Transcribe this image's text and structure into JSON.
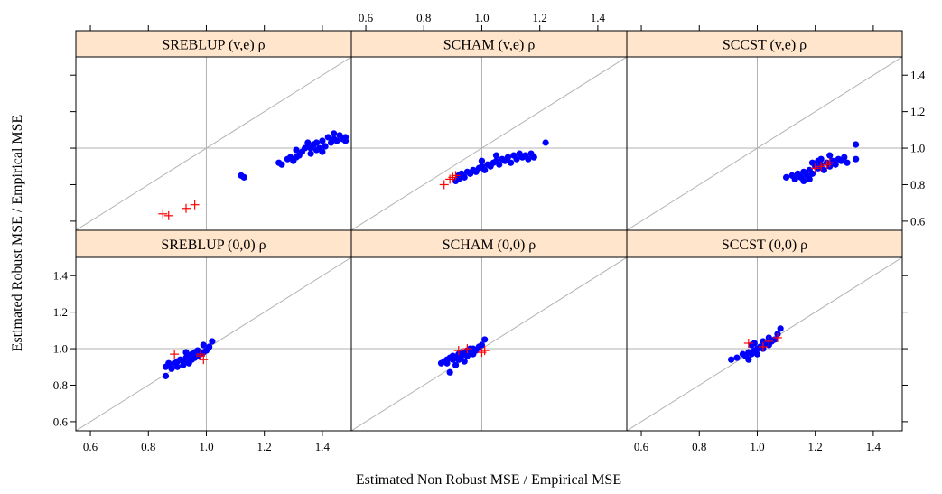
{
  "chart_data": {
    "type": "scatter",
    "xlabel": "Estimated Non Robust MSE / Empirical MSE",
    "ylabel": "Estimated Robust MSE / Empirical MSE",
    "xlim": [
      0.55,
      1.5
    ],
    "ylim": [
      0.55,
      1.5
    ],
    "x_ticks": [
      0.6,
      0.8,
      1.0,
      1.2,
      1.4
    ],
    "y_ticks": [
      0.6,
      0.8,
      1.0,
      1.2,
      1.4
    ],
    "x_tick_labels": [
      "0.6",
      "0.8",
      "1.0",
      "1.2",
      "1.4"
    ],
    "y_tick_labels": [
      "0.6",
      "0.8",
      "1.0",
      "1.2",
      "1.4"
    ],
    "reference_lines": {
      "diagonal": "y = x",
      "horizontal": 1.0,
      "vertical": 1.0
    },
    "colors": {
      "strip": "#ffe5cc",
      "points": "#0000ff",
      "crosses": "#ff0000",
      "reference": "#b3b3b3",
      "frame": "#000000"
    },
    "panels": [
      {
        "title": "SREBLUP (v,e) ρ",
        "series": [
          {
            "marker": "dot",
            "color": "#0000ff",
            "points": [
              [
                1.12,
                0.85
              ],
              [
                1.13,
                0.84
              ],
              [
                1.25,
                0.92
              ],
              [
                1.26,
                0.91
              ],
              [
                1.28,
                0.94
              ],
              [
                1.29,
                0.95
              ],
              [
                1.3,
                0.93
              ],
              [
                1.31,
                0.95
              ],
              [
                1.31,
                0.99
              ],
              [
                1.32,
                0.96
              ],
              [
                1.33,
                0.98
              ],
              [
                1.34,
                1.0
              ],
              [
                1.35,
                1.01
              ],
              [
                1.35,
                1.03
              ],
              [
                1.36,
                0.97
              ],
              [
                1.37,
                1.02
              ],
              [
                1.38,
                0.99
              ],
              [
                1.38,
                1.03
              ],
              [
                1.39,
                1.0
              ],
              [
                1.4,
                1.04
              ],
              [
                1.41,
                1.01
              ],
              [
                1.42,
                1.06
              ],
              [
                1.43,
                1.03
              ],
              [
                1.44,
                1.05
              ],
              [
                1.44,
                1.08
              ],
              [
                1.45,
                1.04
              ],
              [
                1.46,
                1.07
              ],
              [
                1.47,
                1.05
              ],
              [
                1.48,
                1.06
              ],
              [
                1.48,
                1.04
              ],
              [
                1.36,
                1.0
              ],
              [
                1.4,
                0.98
              ]
            ]
          },
          {
            "marker": "cross",
            "color": "#ff0000",
            "points": [
              [
                0.85,
                0.64
              ],
              [
                0.87,
                0.63
              ],
              [
                0.93,
                0.67
              ],
              [
                0.96,
                0.69
              ]
            ]
          }
        ]
      },
      {
        "title": "SCHAM (v,e) ρ",
        "series": [
          {
            "marker": "dot",
            "color": "#0000ff",
            "points": [
              [
                0.91,
                0.82
              ],
              [
                0.92,
                0.83
              ],
              [
                0.92,
                0.85
              ],
              [
                0.93,
                0.86
              ],
              [
                0.94,
                0.84
              ],
              [
                0.95,
                0.87
              ],
              [
                0.96,
                0.86
              ],
              [
                0.97,
                0.88
              ],
              [
                0.98,
                0.87
              ],
              [
                0.99,
                0.89
              ],
              [
                1.0,
                0.9
              ],
              [
                1.01,
                0.88
              ],
              [
                1.02,
                0.91
              ],
              [
                1.03,
                0.9
              ],
              [
                1.04,
                0.92
              ],
              [
                1.05,
                0.93
              ],
              [
                1.06,
                0.91
              ],
              [
                1.07,
                0.94
              ],
              [
                1.08,
                0.93
              ],
              [
                1.09,
                0.95
              ],
              [
                1.1,
                0.92
              ],
              [
                1.11,
                0.96
              ],
              [
                1.12,
                0.94
              ],
              [
                1.13,
                0.97
              ],
              [
                1.14,
                0.95
              ],
              [
                1.15,
                0.96
              ],
              [
                1.16,
                0.94
              ],
              [
                1.17,
                0.97
              ],
              [
                1.18,
                0.95
              ],
              [
                1.22,
                1.03
              ],
              [
                1.0,
                0.93
              ],
              [
                1.05,
                0.96
              ]
            ]
          },
          {
            "marker": "cross",
            "color": "#ff0000",
            "points": [
              [
                0.87,
                0.8
              ],
              [
                0.89,
                0.83
              ],
              [
                0.9,
                0.84
              ],
              [
                0.91,
                0.85
              ]
            ]
          }
        ]
      },
      {
        "title": "SCCST (v,e) ρ",
        "series": [
          {
            "marker": "dot",
            "color": "#0000ff",
            "points": [
              [
                1.1,
                0.84
              ],
              [
                1.12,
                0.85
              ],
              [
                1.13,
                0.83
              ],
              [
                1.14,
                0.86
              ],
              [
                1.15,
                0.84
              ],
              [
                1.16,
                0.87
              ],
              [
                1.17,
                0.85
              ],
              [
                1.18,
                0.83
              ],
              [
                1.18,
                0.88
              ],
              [
                1.19,
                0.86
              ],
              [
                1.2,
                0.9
              ],
              [
                1.21,
                0.89
              ],
              [
                1.22,
                0.91
              ],
              [
                1.23,
                0.88
              ],
              [
                1.24,
                0.92
              ],
              [
                1.25,
                0.9
              ],
              [
                1.26,
                0.93
              ],
              [
                1.27,
                0.91
              ],
              [
                1.28,
                0.94
              ],
              [
                1.29,
                0.93
              ],
              [
                1.3,
                0.95
              ],
              [
                1.31,
                0.92
              ],
              [
                1.25,
                0.96
              ],
              [
                1.22,
                0.94
              ],
              [
                1.19,
                0.92
              ],
              [
                1.34,
                1.02
              ],
              [
                1.34,
                0.94
              ],
              [
                1.16,
                0.82
              ],
              [
                1.21,
                0.93
              ]
            ]
          },
          {
            "marker": "cross",
            "color": "#ff0000",
            "points": [
              [
                1.2,
                0.89
              ],
              [
                1.22,
                0.9
              ],
              [
                1.24,
                0.91
              ],
              [
                1.25,
                0.92
              ]
            ]
          }
        ]
      },
      {
        "title": "SREBLUP (0,0) ρ",
        "series": [
          {
            "marker": "dot",
            "color": "#0000ff",
            "points": [
              [
                0.86,
                0.85
              ],
              [
                0.86,
                0.9
              ],
              [
                0.87,
                0.91
              ],
              [
                0.87,
                0.92
              ],
              [
                0.88,
                0.89
              ],
              [
                0.89,
                0.92
              ],
              [
                0.9,
                0.93
              ],
              [
                0.9,
                0.9
              ],
              [
                0.91,
                0.94
              ],
              [
                0.92,
                0.93
              ],
              [
                0.92,
                0.91
              ],
              [
                0.93,
                0.95
              ],
              [
                0.94,
                0.96
              ],
              [
                0.94,
                0.92
              ],
              [
                0.95,
                0.97
              ],
              [
                0.95,
                0.94
              ],
              [
                0.96,
                0.98
              ],
              [
                0.97,
                0.96
              ],
              [
                0.97,
                0.99
              ],
              [
                0.98,
                0.97
              ],
              [
                0.99,
                1.02
              ],
              [
                1.0,
                0.99
              ],
              [
                1.01,
                1.01
              ],
              [
                1.02,
                1.04
              ],
              [
                0.93,
                0.98
              ],
              [
                0.96,
                0.95
              ],
              [
                0.99,
                0.98
              ]
            ]
          },
          {
            "marker": "cross",
            "color": "#ff0000",
            "points": [
              [
                0.89,
                0.97
              ],
              [
                0.98,
                0.97
              ],
              [
                0.98,
                0.96
              ],
              [
                0.99,
                0.94
              ]
            ]
          }
        ]
      },
      {
        "title": "SCHAM (0,0) ρ",
        "series": [
          {
            "marker": "dot",
            "color": "#0000ff",
            "points": [
              [
                0.86,
                0.92
              ],
              [
                0.87,
                0.93
              ],
              [
                0.88,
                0.94
              ],
              [
                0.88,
                0.92
              ],
              [
                0.89,
                0.95
              ],
              [
                0.9,
                0.94
              ],
              [
                0.9,
                0.96
              ],
              [
                0.91,
                0.95
              ],
              [
                0.92,
                0.97
              ],
              [
                0.92,
                0.94
              ],
              [
                0.93,
                0.96
              ],
              [
                0.93,
                0.98
              ],
              [
                0.94,
                0.97
              ],
              [
                0.95,
                0.99
              ],
              [
                0.95,
                0.96
              ],
              [
                0.96,
                0.98
              ],
              [
                0.97,
                1.0
              ],
              [
                0.97,
                0.97
              ],
              [
                0.98,
                0.99
              ],
              [
                0.99,
                1.01
              ],
              [
                1.0,
                1.02
              ],
              [
                1.01,
                1.05
              ],
              [
                0.89,
                0.87
              ],
              [
                0.91,
                0.91
              ],
              [
                0.94,
                0.93
              ],
              [
                0.96,
                1.0
              ]
            ]
          },
          {
            "marker": "cross",
            "color": "#ff0000",
            "points": [
              [
                0.92,
                0.99
              ],
              [
                0.95,
                1.0
              ],
              [
                1.0,
                0.98
              ],
              [
                1.01,
                0.99
              ]
            ]
          }
        ]
      },
      {
        "title": "SCCST (0,0) ρ",
        "series": [
          {
            "marker": "dot",
            "color": "#0000ff",
            "points": [
              [
                0.91,
                0.94
              ],
              [
                0.93,
                0.95
              ],
              [
                0.95,
                0.97
              ],
              [
                0.96,
                0.96
              ],
              [
                0.97,
                0.94
              ],
              [
                0.97,
                0.98
              ],
              [
                0.98,
                0.97
              ],
              [
                0.98,
                1.02
              ],
              [
                0.99,
                0.99
              ],
              [
                1.0,
                1.0
              ],
              [
                1.0,
                0.97
              ],
              [
                1.01,
                1.01
              ],
              [
                1.02,
                1.0
              ],
              [
                1.03,
                1.03
              ],
              [
                1.04,
                1.02
              ],
              [
                1.05,
                1.04
              ],
              [
                1.06,
                1.05
              ],
              [
                1.07,
                1.08
              ],
              [
                1.08,
                1.11
              ],
              [
                0.99,
                1.03
              ],
              [
                1.02,
                1.04
              ],
              [
                1.04,
                1.06
              ]
            ]
          },
          {
            "marker": "cross",
            "color": "#ff0000",
            "points": [
              [
                0.97,
                1.03
              ],
              [
                1.02,
                1.01
              ],
              [
                1.04,
                1.04
              ],
              [
                1.07,
                1.06
              ]
            ]
          }
        ]
      }
    ]
  }
}
